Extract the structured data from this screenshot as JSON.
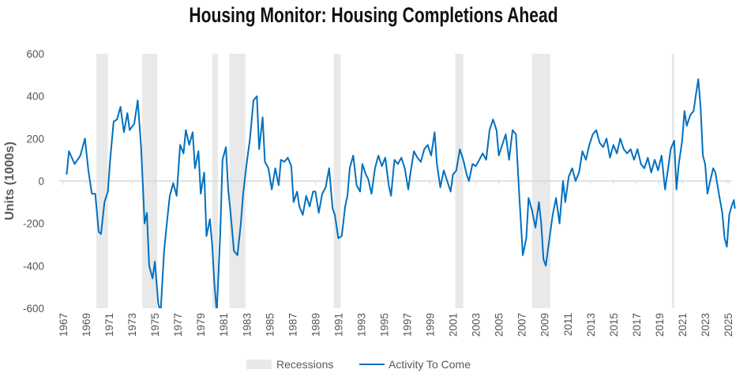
{
  "chart_data": {
    "type": "line",
    "title": "Housing Monitor: Housing Completions Ahead",
    "xlabel": "",
    "ylabel": "Units (1000s)",
    "ylim": [
      -600,
      600
    ],
    "xlim": [
      1967,
      2025.7
    ],
    "yticks": [
      -600,
      -400,
      -200,
      0,
      200,
      400,
      600
    ],
    "xticks": [
      1967,
      1969,
      1971,
      1973,
      1975,
      1977,
      1979,
      1981,
      1983,
      1985,
      1987,
      1989,
      1991,
      1993,
      1995,
      1997,
      1999,
      2001,
      2003,
      2005,
      2007,
      2009,
      2011,
      2013,
      2015,
      2017,
      2019,
      2021,
      2023,
      2025
    ],
    "grid": false,
    "legend_position": "bottom",
    "legend": [
      "Recessions",
      "Activity To Come"
    ],
    "colors": {
      "line": "#0070C0",
      "recession": "#E9E9E9",
      "axis": "#D9D9D9"
    },
    "recessions": [
      [
        1969.9,
        1970.9
      ],
      [
        1973.9,
        1975.2
      ],
      [
        1980.0,
        1980.5
      ],
      [
        1981.5,
        1982.9
      ],
      [
        1990.6,
        1991.2
      ],
      [
        2001.2,
        2001.9
      ],
      [
        2007.9,
        2009.5
      ],
      [
        2020.1,
        2020.3
      ]
    ],
    "series": [
      {
        "name": "Activity To Come",
        "x": [
          1967.3,
          1967.5,
          1968.0,
          1968.5,
          1968.9,
          1969.2,
          1969.5,
          1969.8,
          1970.1,
          1970.3,
          1970.6,
          1970.9,
          1971.1,
          1971.4,
          1971.7,
          1972.0,
          1972.3,
          1972.6,
          1972.8,
          1973.2,
          1973.5,
          1973.8,
          1974.1,
          1974.3,
          1974.5,
          1974.8,
          1975.0,
          1975.3,
          1975.5,
          1975.8,
          1976.1,
          1976.3,
          1976.6,
          1976.9,
          1977.2,
          1977.5,
          1977.7,
          1978.0,
          1978.3,
          1978.5,
          1978.8,
          1979.0,
          1979.3,
          1979.5,
          1979.8,
          1980.0,
          1980.2,
          1980.4,
          1980.7,
          1980.9,
          1981.2,
          1981.4,
          1981.6,
          1981.9,
          1982.2,
          1982.5,
          1982.7,
          1983.0,
          1983.3,
          1983.6,
          1983.9,
          1984.1,
          1984.4,
          1984.6,
          1984.9,
          1985.2,
          1985.5,
          1985.8,
          1986.0,
          1986.3,
          1986.6,
          1986.9,
          1987.1,
          1987.4,
          1987.6,
          1987.9,
          1988.2,
          1988.5,
          1988.8,
          1989.0,
          1989.3,
          1989.6,
          1989.9,
          1990.2,
          1990.5,
          1990.7,
          1991.0,
          1991.3,
          1991.6,
          1991.8,
          1992.0,
          1992.3,
          1992.6,
          1992.9,
          1993.1,
          1993.4,
          1993.6,
          1993.9,
          1994.2,
          1994.5,
          1994.8,
          1995.1,
          1995.4,
          1995.6,
          1995.9,
          1996.2,
          1996.5,
          1996.8,
          1997.1,
          1997.3,
          1997.6,
          1997.9,
          1998.2,
          1998.5,
          1998.8,
          1999.1,
          1999.4,
          1999.6,
          1999.9,
          2000.2,
          2000.5,
          2000.8,
          2001.0,
          2001.3,
          2001.6,
          2001.9,
          2002.2,
          2002.4,
          2002.7,
          2003.0,
          2003.3,
          2003.6,
          2003.9,
          2004.2,
          2004.5,
          2004.8,
          2005.0,
          2005.3,
          2005.6,
          2005.9,
          2006.2,
          2006.5,
          2006.8,
          2007.1,
          2007.4,
          2007.6,
          2007.9,
          2008.2,
          2008.5,
          2008.7,
          2008.9,
          2009.1,
          2009.4,
          2009.7,
          2010.0,
          2010.3,
          2010.6,
          2010.8,
          2011.1,
          2011.4,
          2011.7,
          2012.0,
          2012.3,
          2012.6,
          2012.9,
          2013.2,
          2013.5,
          2013.8,
          2014.1,
          2014.4,
          2014.7,
          2015.0,
          2015.3,
          2015.6,
          2015.9,
          2016.2,
          2016.5,
          2016.8,
          2017.1,
          2017.4,
          2017.7,
          2018.0,
          2018.3,
          2018.6,
          2018.9,
          2019.2,
          2019.5,
          2019.8,
          2020.0,
          2020.3,
          2020.5,
          2020.7,
          2021.0,
          2021.2,
          2021.4,
          2021.7,
          2022.0,
          2022.2,
          2022.4,
          2022.6,
          2022.8,
          2023.0,
          2023.2,
          2023.4,
          2023.7,
          2023.9,
          2024.2,
          2024.5,
          2024.7,
          2024.9,
          2025.1,
          2025.3,
          2025.5,
          2025.6
        ],
        "values": [
          30,
          140,
          80,
          120,
          200,
          50,
          -60,
          -60,
          -240,
          -250,
          -100,
          -50,
          100,
          280,
          290,
          350,
          230,
          320,
          240,
          270,
          380,
          160,
          -200,
          -150,
          -400,
          -460,
          -380,
          -580,
          -620,
          -330,
          -170,
          -70,
          -10,
          -70,
          170,
          130,
          240,
          170,
          230,
          60,
          140,
          -60,
          40,
          -260,
          -180,
          -300,
          -490,
          -620,
          -250,
          100,
          160,
          -40,
          -150,
          -330,
          -350,
          -200,
          -60,
          80,
          200,
          380,
          400,
          150,
          300,
          90,
          60,
          -40,
          60,
          -20,
          100,
          90,
          110,
          70,
          -100,
          -50,
          -120,
          -160,
          -70,
          -120,
          -50,
          -50,
          -150,
          -60,
          -30,
          60,
          -130,
          -160,
          -270,
          -260,
          -120,
          -70,
          60,
          120,
          -20,
          -50,
          80,
          30,
          10,
          -60,
          60,
          120,
          70,
          110,
          -20,
          -70,
          100,
          80,
          110,
          60,
          -40,
          40,
          140,
          110,
          90,
          150,
          170,
          120,
          230,
          80,
          -30,
          50,
          0,
          -50,
          30,
          50,
          150,
          100,
          30,
          0,
          80,
          70,
          100,
          130,
          100,
          240,
          290,
          240,
          120,
          170,
          220,
          100,
          240,
          220,
          -80,
          -350,
          -270,
          -80,
          -140,
          -220,
          -100,
          -200,
          -370,
          -400,
          -280,
          -160,
          -80,
          -200,
          0,
          -100,
          20,
          60,
          0,
          40,
          140,
          100,
          170,
          220,
          240,
          180,
          160,
          200,
          110,
          170,
          130,
          200,
          150,
          130,
          150,
          100,
          150,
          80,
          60,
          110,
          40,
          100,
          50,
          120,
          -40,
          70,
          150,
          190,
          -40,
          80,
          190,
          330,
          260,
          310,
          330,
          410,
          480,
          350,
          120,
          80,
          -60,
          -10,
          60,
          40,
          -60,
          -150,
          -270,
          -310,
          -160,
          -120,
          -90,
          -130
        ]
      }
    ]
  }
}
